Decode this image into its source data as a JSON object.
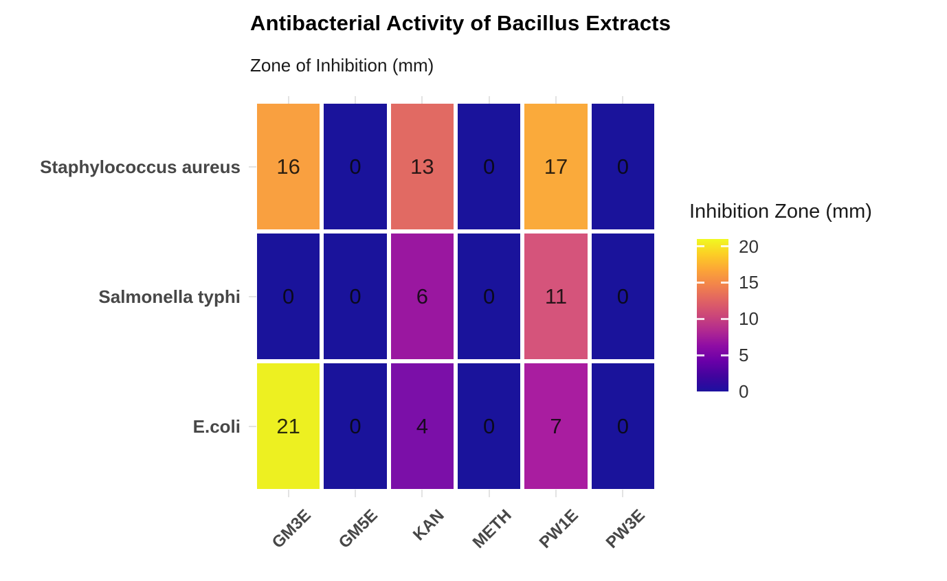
{
  "chart_data": {
    "type": "heatmap",
    "title": "Antibacterial Activity of Bacillus Extracts",
    "subtitle": "Zone of Inhibition (mm)",
    "x_categories": [
      "GM3E",
      "GM5E",
      "KAN",
      "METH",
      "PW1E",
      "PW3E"
    ],
    "y_categories": [
      "Staphylococcus aureus",
      "Salmonella typhi",
      "E.coli"
    ],
    "values": [
      [
        16,
        0,
        13,
        0,
        17,
        0
      ],
      [
        0,
        0,
        6,
        0,
        11,
        0
      ],
      [
        21,
        0,
        4,
        0,
        7,
        0
      ]
    ],
    "cell_colors": [
      [
        "#F9A040",
        "#1A139B",
        "#E16A63",
        "#1A139B",
        "#FAAA3B",
        "#1A139B"
      ],
      [
        "#1A139B",
        "#1A139B",
        "#9A17A0",
        "#1A139B",
        "#D5547B",
        "#1A139B"
      ],
      [
        "#EDF021",
        "#1A139B",
        "#7B0FA8",
        "#1A139B",
        "#A91DA0",
        "#1A139B"
      ]
    ],
    "value_domain": [
      0,
      21
    ],
    "colormap": "plasma",
    "grid_lines": false,
    "legend": {
      "title": "Inhibition Zone (mm)",
      "position": "right",
      "tick_labels": [
        "20",
        "15",
        "10",
        "5",
        "0"
      ],
      "tick_values": [
        20,
        15,
        10,
        5,
        0
      ],
      "gradient_top_color": "#f0f921",
      "gradient_bottom_color": "#1c10a0"
    }
  }
}
